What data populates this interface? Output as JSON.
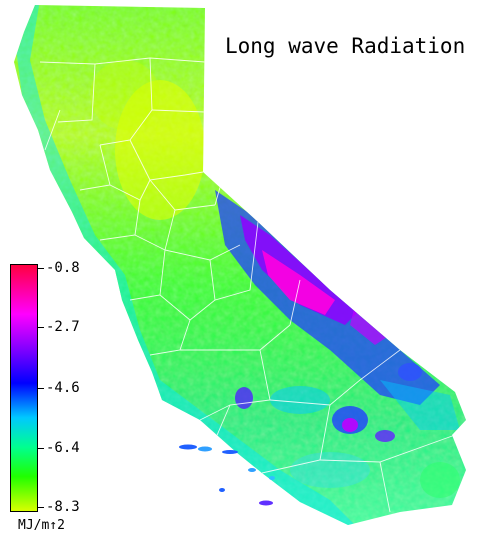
{
  "title": "Long wave Radiation",
  "legend": {
    "ticks": [
      "-0.8",
      "-2.7",
      "-4.6",
      "-6.4",
      "-8.3"
    ],
    "unit": "MJ/m↑2",
    "colors": [
      "#ff0040",
      "#ff00ff",
      "#7a00ff",
      "#0000ff",
      "#00c8ff",
      "#00ff90",
      "#20ff00",
      "#d8ff00"
    ]
  }
}
